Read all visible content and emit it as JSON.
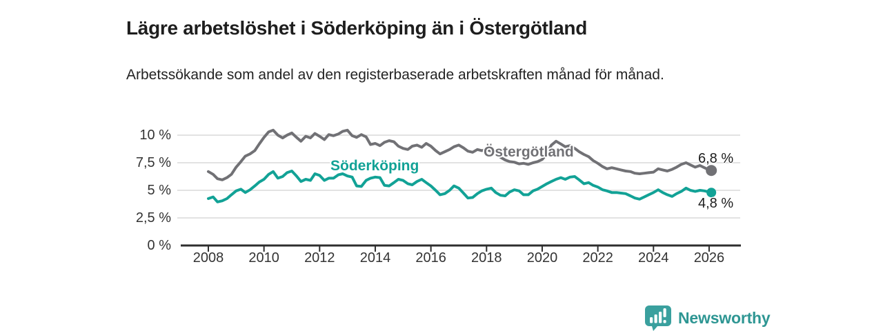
{
  "header": {
    "title": "Lägre arbetslöshet i Söderköping än i Östergötland",
    "subtitle": "Arbetssökande som andel av den registerbaserade arbetskraften månad för månad."
  },
  "footer": {
    "brand": "Newsworthy"
  },
  "colors": {
    "ostergotland_line": "#717175",
    "soderkoping_line": "#12a296",
    "gridline": "#d9d9d9",
    "axis": "#2d2d2d",
    "axis_text": "#333333",
    "brand_teal": "#3aa09e",
    "brand_text": "#2e9693"
  },
  "chart_data": {
    "type": "line",
    "title": "Lägre arbetslöshet i Söderköping än i Östergötland",
    "xlabel": "",
    "ylabel": "",
    "unit": "%",
    "grid": true,
    "legend_position": "inline-labels",
    "xlim": [
      2007.1,
      2027.1
    ],
    "ylim": [
      0,
      10.6
    ],
    "x_ticks": [
      2008,
      2010,
      2012,
      2014,
      2016,
      2018,
      2020,
      2022,
      2024,
      2026
    ],
    "x_tick_labels": [
      "2008",
      "2010",
      "2012",
      "2014",
      "2016",
      "2018",
      "2020",
      "2022",
      "2024",
      "2026"
    ],
    "y_ticks": [
      0,
      2.5,
      5,
      7.5,
      10
    ],
    "y_tick_labels": [
      "0 %",
      "2,5 %",
      "5 %",
      "7,5 %",
      "10 %"
    ],
    "x": [
      2008,
      2008.17,
      2008.33,
      2008.5,
      2008.67,
      2008.83,
      2009,
      2009.17,
      2009.33,
      2009.5,
      2009.67,
      2009.83,
      2010,
      2010.17,
      2010.33,
      2010.5,
      2010.67,
      2010.83,
      2011,
      2011.17,
      2011.33,
      2011.5,
      2011.67,
      2011.83,
      2012,
      2012.17,
      2012.33,
      2012.5,
      2012.67,
      2012.83,
      2013,
      2013.17,
      2013.33,
      2013.5,
      2013.67,
      2013.83,
      2014,
      2014.17,
      2014.33,
      2014.5,
      2014.67,
      2014.83,
      2015,
      2015.17,
      2015.33,
      2015.5,
      2015.67,
      2015.83,
      2016,
      2016.17,
      2016.33,
      2016.5,
      2016.67,
      2016.83,
      2017,
      2017.17,
      2017.33,
      2017.5,
      2017.67,
      2017.83,
      2018,
      2018.17,
      2018.33,
      2018.5,
      2018.67,
      2018.83,
      2019,
      2019.17,
      2019.33,
      2019.5,
      2019.67,
      2019.83,
      2020,
      2020.17,
      2020.33,
      2020.5,
      2020.67,
      2020.83,
      2021,
      2021.17,
      2021.33,
      2021.5,
      2021.67,
      2021.83,
      2022,
      2022.17,
      2022.33,
      2022.5,
      2022.67,
      2022.83,
      2023,
      2023.17,
      2023.33,
      2023.5,
      2023.67,
      2023.83,
      2024,
      2024.17,
      2024.33,
      2024.5,
      2024.67,
      2024.83,
      2025,
      2025.17,
      2025.33,
      2025.5,
      2025.67,
      2025.83,
      2026,
      2026.08
    ],
    "series": [
      {
        "name": "Östergötland",
        "color": "#717175",
        "end_label": "6,8 %",
        "end_value": 6.8,
        "values": [
          6.7,
          6.45,
          6.05,
          5.95,
          6.15,
          6.45,
          7.1,
          7.6,
          8.1,
          8.3,
          8.6,
          9.2,
          9.8,
          10.3,
          10.45,
          10.0,
          9.75,
          10.0,
          10.2,
          9.8,
          9.45,
          9.9,
          9.75,
          10.15,
          9.9,
          9.6,
          10.05,
          9.95,
          10.1,
          10.35,
          10.45,
          9.95,
          9.8,
          10.05,
          9.85,
          9.15,
          9.25,
          9.05,
          9.35,
          9.5,
          9.4,
          9.0,
          8.8,
          8.7,
          9.0,
          9.1,
          8.9,
          9.25,
          9.0,
          8.6,
          8.3,
          8.5,
          8.7,
          8.95,
          9.1,
          8.85,
          8.55,
          8.45,
          8.7,
          8.6,
          8.7,
          8.55,
          8.35,
          8.0,
          7.75,
          7.6,
          7.55,
          7.4,
          7.45,
          7.35,
          7.5,
          7.6,
          7.8,
          8.3,
          9.1,
          9.45,
          9.2,
          8.95,
          9.05,
          8.8,
          8.5,
          8.25,
          8.05,
          7.7,
          7.45,
          7.15,
          6.95,
          7.05,
          6.95,
          6.85,
          6.75,
          6.7,
          6.55,
          6.5,
          6.55,
          6.6,
          6.65,
          6.95,
          6.85,
          6.75,
          6.9,
          7.1,
          7.35,
          7.5,
          7.3,
          7.1,
          7.25,
          7.05,
          6.85,
          6.8
        ]
      },
      {
        "name": "Söderköping",
        "color": "#12a296",
        "end_label": "4,8 %",
        "end_value": 4.8,
        "values": [
          4.25,
          4.4,
          3.95,
          4.05,
          4.25,
          4.6,
          4.95,
          5.1,
          4.8,
          5.05,
          5.4,
          5.75,
          6.0,
          6.45,
          6.7,
          6.1,
          6.25,
          6.6,
          6.75,
          6.3,
          5.8,
          6.0,
          5.9,
          6.5,
          6.35,
          5.9,
          6.1,
          6.1,
          6.4,
          6.5,
          6.3,
          6.2,
          5.4,
          5.35,
          5.9,
          6.1,
          6.2,
          6.15,
          5.45,
          5.4,
          5.7,
          6.0,
          5.9,
          5.6,
          5.5,
          5.8,
          6.0,
          5.7,
          5.4,
          5.0,
          4.6,
          4.7,
          5.0,
          5.4,
          5.2,
          4.75,
          4.3,
          4.35,
          4.7,
          4.95,
          5.1,
          5.2,
          4.8,
          4.55,
          4.5,
          4.85,
          5.05,
          4.95,
          4.6,
          4.6,
          4.95,
          5.1,
          5.35,
          5.6,
          5.8,
          6.0,
          6.15,
          6.0,
          6.2,
          6.25,
          5.95,
          5.6,
          5.7,
          5.45,
          5.3,
          5.05,
          4.95,
          4.8,
          4.8,
          4.75,
          4.7,
          4.5,
          4.3,
          4.2,
          4.4,
          4.6,
          4.8,
          5.05,
          4.8,
          4.6,
          4.45,
          4.7,
          4.9,
          5.2,
          5.0,
          4.9,
          5.0,
          4.95,
          4.85,
          4.8
        ]
      }
    ]
  }
}
